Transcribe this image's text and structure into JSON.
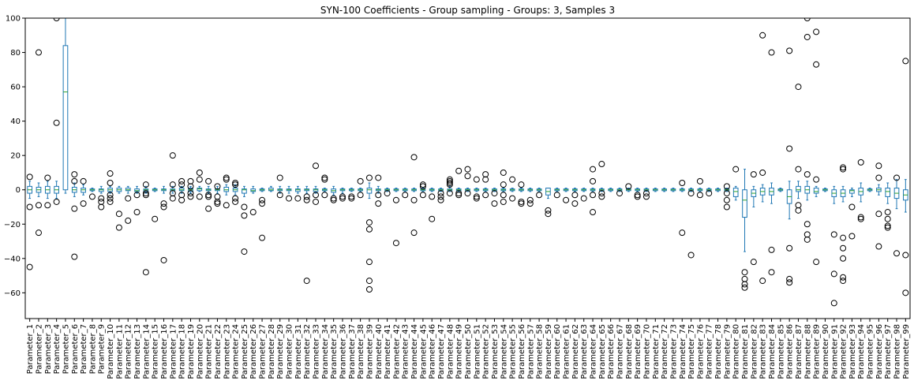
{
  "chart_data": {
    "type": "box",
    "title": "SYN-100 Coefficients - Group sampling - Groups: 3, Samples 3",
    "xlabel": "",
    "ylabel": "",
    "ylim": [
      -75,
      100
    ],
    "yticks": [
      -60,
      -40,
      -20,
      0,
      20,
      40,
      60,
      80,
      100
    ],
    "grid": false,
    "colors": {
      "box": "#1f77b4",
      "median": "#2ca02c",
      "flier": "#000000",
      "frame": "#000000"
    },
    "categories": [
      "Parameter_1",
      "Parameter_2",
      "Parameter_3",
      "Parameter_4",
      "Parameter_5",
      "Parameter_6",
      "Parameter_7",
      "Parameter_8",
      "Parameter_9",
      "Parameter_10",
      "Parameter_11",
      "Parameter_12",
      "Parameter_13",
      "Parameter_14",
      "Parameter_15",
      "Parameter_16",
      "Parameter_17",
      "Parameter_18",
      "Parameter_19",
      "Parameter_20",
      "Parameter_21",
      "Parameter_22",
      "Parameter_23",
      "Parameter_24",
      "Parameter_25",
      "Parameter_26",
      "Parameter_27",
      "Parameter_28",
      "Parameter_29",
      "Parameter_30",
      "Parameter_31",
      "Parameter_32",
      "Parameter_33",
      "Parameter_34",
      "Parameter_35",
      "Parameter_36",
      "Parameter_37",
      "Parameter_38",
      "Parameter_39",
      "Parameter_40",
      "Parameter_41",
      "Parameter_42",
      "Parameter_43",
      "Parameter_44",
      "Parameter_45",
      "Parameter_46",
      "Parameter_47",
      "Parameter_48",
      "Parameter_49",
      "Parameter_50",
      "Parameter_51",
      "Parameter_52",
      "Parameter_53",
      "Parameter_54",
      "Parameter_55",
      "Parameter_56",
      "Parameter_57",
      "Parameter_58",
      "Parameter_59",
      "Parameter_60",
      "Parameter_61",
      "Parameter_62",
      "Parameter_63",
      "Parameter_64",
      "Parameter_65",
      "Parameter_66",
      "Parameter_67",
      "Parameter_68",
      "Parameter_69",
      "Parameter_70",
      "Parameter_71",
      "Parameter_72",
      "Parameter_73",
      "Parameter_74",
      "Parameter_75",
      "Parameter_76",
      "Parameter_77",
      "Parameter_78",
      "Parameter_79",
      "Parameter_80",
      "Parameter_81",
      "Parameter_82",
      "Parameter_83",
      "Parameter_84",
      "Parameter_85",
      "Parameter_86",
      "Parameter_87",
      "Parameter_88",
      "Parameter_89",
      "Parameter_90",
      "Parameter_91",
      "Parameter_92",
      "Parameter_93",
      "Parameter_94",
      "Parameter_95",
      "Parameter_96",
      "Parameter_97",
      "Parameter_98",
      "Parameter_99"
    ],
    "boxes": [
      {
        "q1": -2,
        "med": 0,
        "q3": 2,
        "wlo": -5,
        "whi": 5,
        "fliers": [
          7.5,
          -10,
          -45
        ]
      },
      {
        "q1": -1.5,
        "med": 0,
        "q3": 1.5,
        "wlo": -4,
        "whi": 4,
        "fliers": [
          80,
          -9,
          -25
        ]
      },
      {
        "q1": -2,
        "med": 0,
        "q3": 2,
        "wlo": -5,
        "whi": 5,
        "fliers": [
          7,
          -9
        ]
      },
      {
        "q1": -2,
        "med": 0,
        "q3": 2,
        "wlo": -5,
        "whi": 5,
        "fliers": [
          39,
          -7,
          100
        ]
      },
      {
        "q1": 0,
        "med": 57,
        "q3": 84,
        "wlo": -2,
        "whi": 100,
        "fliers": []
      },
      {
        "q1": -1.5,
        "med": 0,
        "q3": 1.5,
        "wlo": -4,
        "whi": 4,
        "fliers": [
          9,
          5,
          -11,
          -39
        ]
      },
      {
        "q1": -1.5,
        "med": 0,
        "q3": 1,
        "wlo": -3,
        "whi": 3,
        "fliers": [
          5,
          -8
        ]
      },
      {
        "q1": -0.5,
        "med": 0,
        "q3": 0.5,
        "wlo": -1,
        "whi": 1,
        "fliers": [
          -4
        ]
      },
      {
        "q1": -1,
        "med": 0,
        "q3": 0.5,
        "wlo": -2,
        "whi": 2,
        "fliers": [
          -5,
          -7,
          -10
        ]
      },
      {
        "q1": -1,
        "med": 0,
        "q3": 1,
        "wlo": -2,
        "whi": 2,
        "fliers": [
          9.5,
          4,
          -3,
          -5,
          -7
        ]
      },
      {
        "q1": -1,
        "med": 0,
        "q3": 1,
        "wlo": -2,
        "whi": 2,
        "fliers": [
          -14,
          -22
        ]
      },
      {
        "q1": -0.5,
        "med": 0,
        "q3": 1,
        "wlo": -2,
        "whi": 2,
        "fliers": [
          -5,
          -18
        ]
      },
      {
        "q1": -1,
        "med": -0.5,
        "q3": 0.5,
        "wlo": -2,
        "whi": 2,
        "fliers": [
          -3,
          -13
        ]
      },
      {
        "q1": -1,
        "med": 0,
        "q3": 0.5,
        "wlo": -2,
        "whi": 2,
        "fliers": [
          3,
          -2,
          -3,
          -48
        ]
      },
      {
        "q1": -0.5,
        "med": 0,
        "q3": 0.5,
        "wlo": -1,
        "whi": 1,
        "fliers": [
          -17
        ]
      },
      {
        "q1": -0.5,
        "med": 0,
        "q3": 0.5,
        "wlo": -2,
        "whi": 2,
        "fliers": [
          -8,
          -10,
          -41
        ]
      },
      {
        "q1": -0.5,
        "med": 0,
        "q3": 0.5,
        "wlo": -2,
        "whi": 2,
        "fliers": [
          20,
          3,
          -2,
          -5
        ]
      },
      {
        "q1": -0.5,
        "med": 0,
        "q3": 1,
        "wlo": -2,
        "whi": 2,
        "fliers": [
          5,
          3,
          -3,
          -6
        ]
      },
      {
        "q1": -1,
        "med": 0,
        "q3": 1,
        "wlo": -2,
        "whi": 2,
        "fliers": [
          5,
          2,
          -2,
          -4
        ]
      },
      {
        "q1": -0.5,
        "med": 0.5,
        "q3": 1,
        "wlo": -1,
        "whi": 2,
        "fliers": [
          10,
          6,
          -4
        ]
      },
      {
        "q1": -0.5,
        "med": 0,
        "q3": 0.5,
        "wlo": -2,
        "whi": 2,
        "fliers": [
          5,
          -3,
          -4,
          -11
        ]
      },
      {
        "q1": -0.5,
        "med": 0,
        "q3": 0.5,
        "wlo": -2,
        "whi": 2,
        "fliers": [
          2,
          -4,
          -7,
          -8
        ]
      },
      {
        "q1": -1,
        "med": 0,
        "q3": 1.5,
        "wlo": -3,
        "whi": 3,
        "fliers": [
          7,
          6,
          -9
        ]
      },
      {
        "q1": -1,
        "med": 0,
        "q3": 1,
        "wlo": -3,
        "whi": 3,
        "fliers": [
          4,
          3,
          -5,
          -7
        ]
      },
      {
        "q1": -2,
        "med": 0,
        "q3": 0.5,
        "wlo": -4,
        "whi": 2,
        "fliers": [
          -10,
          -15,
          -36
        ]
      },
      {
        "q1": -1,
        "med": -0.5,
        "q3": 0.5,
        "wlo": -2,
        "whi": 2,
        "fliers": [
          -13
        ]
      },
      {
        "q1": -0.5,
        "med": 0,
        "q3": 0.5,
        "wlo": -1,
        "whi": 1,
        "fliers": [
          -6,
          -8,
          -28
        ]
      },
      {
        "q1": -0.5,
        "med": 0,
        "q3": 1,
        "wlo": -1,
        "whi": 2,
        "fliers": []
      },
      {
        "q1": -0.5,
        "med": 0,
        "q3": 0.5,
        "wlo": -2,
        "whi": 2,
        "fliers": [
          7,
          -3
        ]
      },
      {
        "q1": -0.5,
        "med": 0,
        "q3": 0.5,
        "wlo": -2,
        "whi": 2,
        "fliers": [
          -5
        ]
      },
      {
        "q1": -1,
        "med": 0,
        "q3": 0.5,
        "wlo": -2,
        "whi": 2,
        "fliers": [
          -5
        ]
      },
      {
        "q1": -0.5,
        "med": 0,
        "q3": 0.5,
        "wlo": -2,
        "whi": 2,
        "fliers": [
          -4,
          -6,
          -53
        ]
      },
      {
        "q1": -1,
        "med": 0,
        "q3": 0.5,
        "wlo": -2,
        "whi": 2,
        "fliers": [
          14,
          -3,
          -7
        ]
      },
      {
        "q1": -0.5,
        "med": 0,
        "q3": 0.5,
        "wlo": -1,
        "whi": 1,
        "fliers": [
          7,
          6,
          -3
        ]
      },
      {
        "q1": -1.5,
        "med": -0.5,
        "q3": 0.5,
        "wlo": -3,
        "whi": 2,
        "fliers": [
          -5,
          -6
        ]
      },
      {
        "q1": -0.5,
        "med": 0,
        "q3": 0.5,
        "wlo": -2,
        "whi": 1,
        "fliers": [
          -4,
          -5
        ]
      },
      {
        "q1": -0.5,
        "med": 0,
        "q3": 0.5,
        "wlo": -1,
        "whi": 1,
        "fliers": [
          -4,
          -5
        ]
      },
      {
        "q1": -0.5,
        "med": 0,
        "q3": 0.5,
        "wlo": -1,
        "whi": 1,
        "fliers": [
          5,
          -3
        ]
      },
      {
        "q1": -2,
        "med": 0,
        "q3": 1,
        "wlo": -5,
        "whi": 4,
        "fliers": [
          7,
          -19,
          -23,
          -42,
          -53,
          -58
        ]
      },
      {
        "q1": -0.5,
        "med": 0,
        "q3": 0.5,
        "wlo": -2,
        "whi": 2,
        "fliers": [
          7,
          -3,
          -8
        ]
      },
      {
        "q1": -0.5,
        "med": 0,
        "q3": 0.5,
        "wlo": -1,
        "whi": 1,
        "fliers": [
          -2
        ]
      },
      {
        "q1": -0.5,
        "med": 0,
        "q3": 0.5,
        "wlo": -1,
        "whi": 1,
        "fliers": [
          -6,
          -31
        ]
      },
      {
        "q1": -0.5,
        "med": 0,
        "q3": 0.5,
        "wlo": -1,
        "whi": 1,
        "fliers": [
          -3
        ]
      },
      {
        "q1": -0.5,
        "med": 0,
        "q3": 0.5,
        "wlo": -1,
        "whi": 1,
        "fliers": [
          19,
          -6,
          -25
        ]
      },
      {
        "q1": -0.5,
        "med": 0,
        "q3": 0.5,
        "wlo": -1,
        "whi": 1,
        "fliers": [
          3,
          2,
          -3
        ]
      },
      {
        "q1": -0.5,
        "med": 0,
        "q3": 0.5,
        "wlo": -1,
        "whi": 1,
        "fliers": [
          -4,
          -17
        ]
      },
      {
        "q1": -0.5,
        "med": 0,
        "q3": 0.5,
        "wlo": -1,
        "whi": 1,
        "fliers": [
          -2,
          -4,
          -6
        ]
      },
      {
        "q1": -0.5,
        "med": 0,
        "q3": 0.5,
        "wlo": -1,
        "whi": 2,
        "fliers": [
          6,
          5,
          4,
          3,
          -2
        ]
      },
      {
        "q1": -0.5,
        "med": 0,
        "q3": 0.5,
        "wlo": -1,
        "whi": 1,
        "fliers": [
          11,
          -2,
          -3
        ]
      },
      {
        "q1": -0.5,
        "med": 0,
        "q3": 0.5,
        "wlo": -1,
        "whi": 1,
        "fliers": [
          12,
          8,
          -2
        ]
      },
      {
        "q1": -0.5,
        "med": 0,
        "q3": 0.5,
        "wlo": -1,
        "whi": 1,
        "fliers": [
          6,
          -4,
          -5
        ]
      },
      {
        "q1": -0.5,
        "med": 0,
        "q3": 0.5,
        "wlo": -1,
        "whi": 1,
        "fliers": [
          9,
          6,
          -3
        ]
      },
      {
        "q1": -0.5,
        "med": 0,
        "q3": 0.5,
        "wlo": -1,
        "whi": 1,
        "fliers": [
          -2,
          -8
        ]
      },
      {
        "q1": -0.5,
        "med": 0,
        "q3": 0.5,
        "wlo": -1,
        "whi": 1,
        "fliers": [
          10,
          3,
          -3,
          -7
        ]
      },
      {
        "q1": -0.5,
        "med": 0,
        "q3": 0.5,
        "wlo": -1,
        "whi": 1,
        "fliers": [
          6,
          -5
        ]
      },
      {
        "q1": -0.5,
        "med": 0,
        "q3": 0.5,
        "wlo": -1,
        "whi": 1,
        "fliers": [
          3,
          -7,
          -8
        ]
      },
      {
        "q1": -0.5,
        "med": 0,
        "q3": 0.5,
        "wlo": -1,
        "whi": 1,
        "fliers": [
          -6,
          -8
        ]
      },
      {
        "q1": -0.5,
        "med": 0,
        "q3": 0.5,
        "wlo": -1,
        "whi": 1,
        "fliers": [
          -3
        ]
      },
      {
        "q1": -3,
        "med": -1,
        "q3": 1,
        "wlo": -5,
        "whi": 1,
        "fliers": [
          -12,
          -14
        ]
      },
      {
        "q1": -0.5,
        "med": 0,
        "q3": 0.5,
        "wlo": -1,
        "whi": 1,
        "fliers": [
          -3
        ]
      },
      {
        "q1": -0.5,
        "med": 0,
        "q3": 0.5,
        "wlo": -1,
        "whi": 1,
        "fliers": [
          -6
        ]
      },
      {
        "q1": -0.5,
        "med": 0,
        "q3": 0.5,
        "wlo": -1,
        "whi": 1,
        "fliers": [
          -3,
          -8
        ]
      },
      {
        "q1": -0.5,
        "med": 0,
        "q3": 0.5,
        "wlo": -1,
        "whi": 1,
        "fliers": [
          -5
        ]
      },
      {
        "q1": -0.5,
        "med": 0,
        "q3": 0.5,
        "wlo": -1,
        "whi": 1,
        "fliers": [
          12,
          5,
          -3,
          -13
        ]
      },
      {
        "q1": -0.5,
        "med": 0,
        "q3": 0.5,
        "wlo": -1,
        "whi": 1,
        "fliers": [
          15,
          -2,
          -4
        ]
      },
      {
        "q1": -0.5,
        "med": 0,
        "q3": 0.5,
        "wlo": -1,
        "whi": 1,
        "fliers": []
      },
      {
        "q1": -0.5,
        "med": 0,
        "q3": 0.5,
        "wlo": -1,
        "whi": 1,
        "fliers": [
          -2
        ]
      },
      {
        "q1": -0.5,
        "med": 0,
        "q3": 0.5,
        "wlo": -1,
        "whi": 1,
        "fliers": [
          2
        ]
      },
      {
        "q1": -0.5,
        "med": 0,
        "q3": 0.5,
        "wlo": -1,
        "whi": 1,
        "fliers": [
          -3,
          -4
        ]
      },
      {
        "q1": -0.5,
        "med": 0,
        "q3": 0.5,
        "wlo": -1,
        "whi": 1,
        "fliers": [
          -2,
          -4
        ]
      },
      {
        "q1": -0.5,
        "med": 0,
        "q3": 0.5,
        "wlo": -1,
        "whi": 1,
        "fliers": []
      },
      {
        "q1": -0.5,
        "med": 0,
        "q3": 0.5,
        "wlo": -1,
        "whi": 1,
        "fliers": []
      },
      {
        "q1": -0.5,
        "med": 0,
        "q3": 0.5,
        "wlo": -1,
        "whi": 1,
        "fliers": []
      },
      {
        "q1": -0.5,
        "med": 0,
        "q3": 0.5,
        "wlo": -1,
        "whi": 1,
        "fliers": [
          4,
          -25
        ]
      },
      {
        "q1": -0.5,
        "med": 0,
        "q3": 0.5,
        "wlo": -1,
        "whi": 1,
        "fliers": [
          -2,
          -38
        ]
      },
      {
        "q1": -0.5,
        "med": 0,
        "q3": 0.5,
        "wlo": -1,
        "whi": 1,
        "fliers": [
          5,
          -3
        ]
      },
      {
        "q1": -0.5,
        "med": 0,
        "q3": 0.5,
        "wlo": -1,
        "whi": 1,
        "fliers": [
          -2
        ]
      },
      {
        "q1": -0.5,
        "med": 0,
        "q3": 0.5,
        "wlo": -1,
        "whi": 1,
        "fliers": []
      },
      {
        "q1": -0.5,
        "med": 0,
        "q3": 0.5,
        "wlo": -1,
        "whi": 1,
        "fliers": [
          2,
          -2,
          -6,
          -10
        ]
      },
      {
        "q1": -4,
        "med": -1,
        "q3": 1,
        "wlo": -6,
        "whi": 2,
        "fliers": [
          12
        ]
      },
      {
        "q1": -16,
        "med": -6,
        "q3": 0,
        "wlo": -36,
        "whi": 12,
        "fliers": [
          -48,
          -52,
          -55,
          -57
        ]
      },
      {
        "q1": -4,
        "med": -2,
        "q3": 0,
        "wlo": -10,
        "whi": 2,
        "fliers": [
          9,
          -42
        ]
      },
      {
        "q1": -3,
        "med": -1,
        "q3": 1,
        "wlo": -7,
        "whi": 3,
        "fliers": [
          10,
          90,
          -53
        ]
      },
      {
        "q1": -3,
        "med": -1,
        "q3": 1,
        "wlo": -8,
        "whi": 4,
        "fliers": [
          80,
          -35,
          -48
        ]
      },
      {
        "q1": -0.5,
        "med": 0,
        "q3": 0.5,
        "wlo": -1,
        "whi": 1,
        "fliers": []
      },
      {
        "q1": -8,
        "med": -4,
        "q3": 0,
        "wlo": -17,
        "whi": 5,
        "fliers": [
          24,
          81,
          -34,
          -52,
          -54
        ]
      },
      {
        "q1": -1,
        "med": 0,
        "q3": 2,
        "wlo": -5,
        "whi": 5,
        "fliers": [
          60,
          12,
          -9,
          -12
        ]
      },
      {
        "q1": -2,
        "med": 0,
        "q3": 2,
        "wlo": -6,
        "whi": 5,
        "fliers": [
          89,
          100,
          9,
          -20,
          -26,
          -29
        ]
      },
      {
        "q1": -2,
        "med": -1,
        "q3": 1,
        "wlo": -4,
        "whi": 2,
        "fliers": [
          92,
          73,
          6,
          -42
        ]
      },
      {
        "q1": -0.5,
        "med": 0,
        "q3": 0.5,
        "wlo": -1,
        "whi": 1,
        "fliers": []
      },
      {
        "q1": -4,
        "med": -2,
        "q3": 0,
        "wlo": -8,
        "whi": 2,
        "fliers": [
          -26,
          -49,
          -66
        ]
      },
      {
        "q1": -4,
        "med": -2,
        "q3": 0,
        "wlo": -7,
        "whi": 2,
        "fliers": [
          13,
          12,
          -28,
          -34,
          -40,
          -51,
          -53
        ]
      },
      {
        "q1": -2,
        "med": -0.5,
        "q3": 0,
        "wlo": -4,
        "whi": 1,
        "fliers": [
          -10,
          -27
        ]
      },
      {
        "q1": -3,
        "med": -1,
        "q3": 1,
        "wlo": -7,
        "whi": 4,
        "fliers": [
          16,
          -16,
          -17
        ]
      },
      {
        "q1": -0.5,
        "med": 0,
        "q3": 0.5,
        "wlo": -1,
        "whi": 1,
        "fliers": []
      },
      {
        "q1": -1,
        "med": 0,
        "q3": 1,
        "wlo": -3,
        "whi": 3,
        "fliers": [
          14,
          7,
          -14,
          -33
        ]
      },
      {
        "q1": -4,
        "med": -1,
        "q3": 1,
        "wlo": -8,
        "whi": 4,
        "fliers": [
          -13,
          -17,
          -21,
          -22
        ]
      },
      {
        "q1": -5,
        "med": -2,
        "q3": 1,
        "wlo": -11,
        "whi": 6,
        "fliers": [
          7,
          -37
        ]
      },
      {
        "q1": -6,
        "med": -3,
        "q3": 0,
        "wlo": -13,
        "whi": 6,
        "fliers": [
          75,
          -38,
          -60
        ]
      }
    ]
  }
}
